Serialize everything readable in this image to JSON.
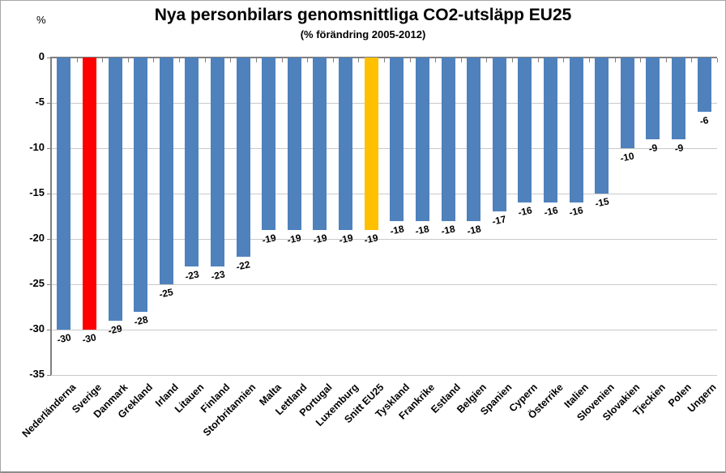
{
  "chart_data": {
    "type": "bar",
    "title": "Nya personbilars genomsnittliga CO2-utsläpp EU25",
    "subtitle": "(% förändring 2005-2012)",
    "ylabel": "%",
    "xlabel": "",
    "ylim": [
      -35,
      0
    ],
    "yticks": [
      0,
      -5,
      -10,
      -15,
      -20,
      -25,
      -30,
      -35
    ],
    "grid": true,
    "legend": false,
    "data_labels": true,
    "categories": [
      "Nederländerna",
      "Sverige",
      "Danmark",
      "Grekland",
      "Irland",
      "Litauen",
      "Finland",
      "Storbritannien",
      "Malta",
      "Lettland",
      "Portugal",
      "Luxemburg",
      "Snitt EU25",
      "Tyskland",
      "Frankrike",
      "Estland",
      "Belgien",
      "Spanien",
      "Cypern",
      "Österrike",
      "Italien",
      "Slovenien",
      "Slovakien",
      "Tjeckien",
      "Polen",
      "Ungern"
    ],
    "values": [
      -30,
      -30,
      -29,
      -28,
      -25,
      -23,
      -23,
      -22,
      -19,
      -19,
      -19,
      -19,
      -19,
      -18,
      -18,
      -18,
      -18,
      -17,
      -16,
      -16,
      -16,
      -15,
      -10,
      -9,
      -9,
      -6
    ],
    "default_bar_color": "#4F81BD",
    "highlights": [
      {
        "category": "Sverige",
        "color": "#FF0000"
      },
      {
        "category": "Snitt EU25",
        "color": "#FFC000"
      }
    ],
    "colors": {
      "gridline": "#C9C9C9",
      "axis": "#808080",
      "text": "#000000",
      "background": "#FFFFFF"
    }
  }
}
